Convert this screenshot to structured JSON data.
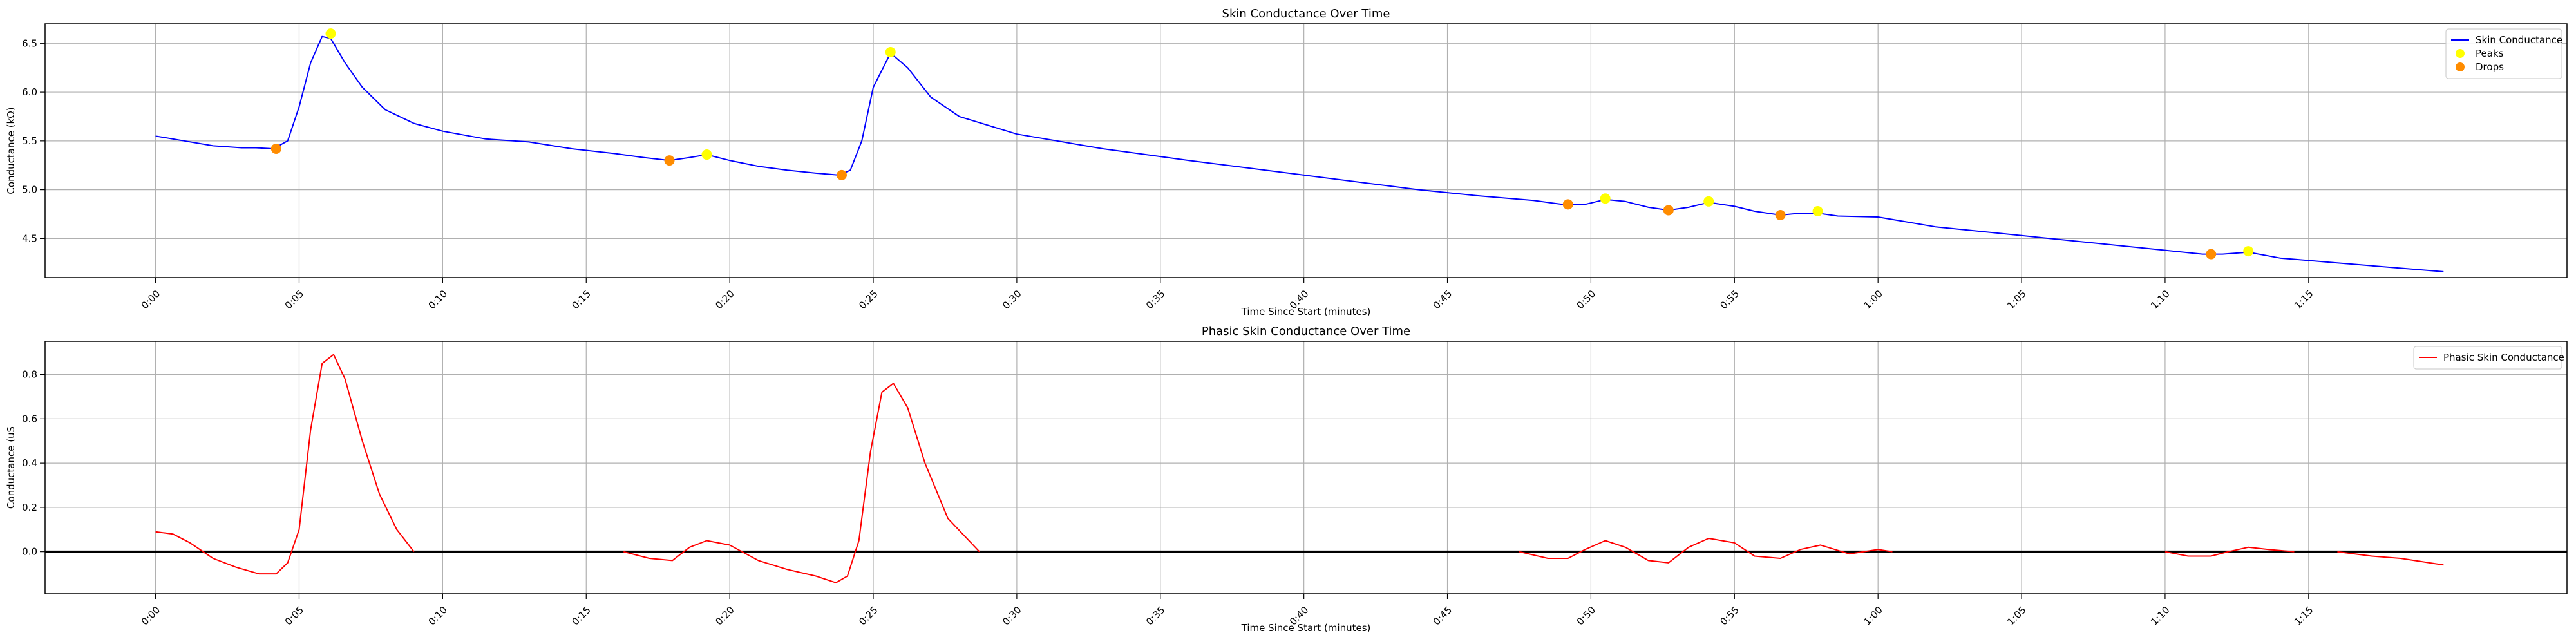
{
  "chart_data": [
    {
      "type": "line",
      "title": "Skin Conductance Over Time",
      "xlabel": "Time Since Start (minutes)",
      "ylabel": "Conductance (kΩ)",
      "xlim": [
        -0.0385,
        0.84
      ],
      "ylim": [
        4.1,
        6.7
      ],
      "xticks": [
        0.0,
        0.05,
        0.1,
        0.15,
        0.2,
        0.25,
        0.3,
        0.35,
        0.4,
        0.45,
        0.5,
        0.55,
        0.6,
        0.65,
        0.7,
        0.75
      ],
      "xtick_labels": [
        "0:00",
        "0:05",
        "0:10",
        "0:15",
        "0:20",
        "0:25",
        "0:30",
        "0:35",
        "0:40",
        "0:45",
        "0:50",
        "0:55",
        "1:00",
        "1:05",
        "1:10",
        "1:15"
      ],
      "yticks": [
        4.5,
        5.0,
        5.5,
        6.0,
        6.5
      ],
      "ytick_labels": [
        "4.5",
        "5.0",
        "5.5",
        "6.0",
        "6.5"
      ],
      "grid": true,
      "legend_position": "top-right",
      "series": [
        {
          "name": "Skin Conductance",
          "color": "#0000ff",
          "x": [
            0.0,
            0.01,
            0.02,
            0.03,
            0.035,
            0.041,
            0.046,
            0.05,
            0.054,
            0.058,
            0.061,
            0.066,
            0.072,
            0.08,
            0.09,
            0.1,
            0.115,
            0.13,
            0.145,
            0.16,
            0.17,
            0.179,
            0.186,
            0.192,
            0.2,
            0.21,
            0.22,
            0.23,
            0.238,
            0.242,
            0.246,
            0.25,
            0.256,
            0.262,
            0.27,
            0.28,
            0.3,
            0.33,
            0.36,
            0.4,
            0.44,
            0.46,
            0.48,
            0.49,
            0.498,
            0.505,
            0.512,
            0.52,
            0.527,
            0.534,
            0.541,
            0.55,
            0.557,
            0.566,
            0.573,
            0.579,
            0.586,
            0.6,
            0.62,
            0.65,
            0.68,
            0.7,
            0.713,
            0.72,
            0.729,
            0.74,
            0.76,
            0.797
          ],
          "y": [
            5.55,
            5.5,
            5.45,
            5.43,
            5.43,
            5.42,
            5.5,
            5.85,
            6.3,
            6.57,
            6.55,
            6.3,
            6.05,
            5.82,
            5.68,
            5.6,
            5.52,
            5.49,
            5.42,
            5.37,
            5.33,
            5.3,
            5.33,
            5.36,
            5.3,
            5.24,
            5.2,
            5.17,
            5.15,
            5.2,
            5.5,
            6.05,
            6.4,
            6.25,
            5.95,
            5.75,
            5.57,
            5.42,
            5.3,
            5.15,
            5.0,
            4.94,
            4.89,
            4.85,
            4.85,
            4.9,
            4.88,
            4.82,
            4.79,
            4.82,
            4.87,
            4.83,
            4.78,
            4.74,
            4.76,
            4.76,
            4.73,
            4.72,
            4.62,
            4.53,
            4.44,
            4.38,
            4.34,
            4.34,
            4.36,
            4.3,
            4.25,
            4.16
          ]
        },
        {
          "name": "Peaks",
          "kind": "scatter",
          "color": "#ffff00",
          "x": [
            0.061,
            0.192,
            0.256,
            0.505,
            0.541,
            0.579,
            0.729
          ],
          "y": [
            6.6,
            5.36,
            6.41,
            4.91,
            4.88,
            4.78,
            4.37
          ]
        },
        {
          "name": "Drops",
          "kind": "scatter",
          "color": "#ff8c00",
          "x": [
            0.042,
            0.179,
            0.239,
            0.492,
            0.527,
            0.566,
            0.716
          ],
          "y": [
            5.42,
            5.3,
            5.15,
            4.85,
            4.79,
            4.74,
            4.34
          ]
        }
      ]
    },
    {
      "type": "line",
      "title": "Phasic Skin Conductance Over Time",
      "xlabel": "Time Since Start (minutes)",
      "ylabel": "Conductance (uS",
      "xlim": [
        -0.0385,
        0.84
      ],
      "ylim": [
        -0.19,
        0.95
      ],
      "xticks": [
        0.0,
        0.05,
        0.1,
        0.15,
        0.2,
        0.25,
        0.3,
        0.35,
        0.4,
        0.45,
        0.5,
        0.55,
        0.6,
        0.65,
        0.7,
        0.75
      ],
      "xtick_labels": [
        "0:00",
        "0:05",
        "0:10",
        "0:15",
        "0:20",
        "0:25",
        "0:30",
        "0:35",
        "0:40",
        "0:45",
        "0:50",
        "0:55",
        "1:00",
        "1:05",
        "1:10",
        "1:15"
      ],
      "yticks": [
        0.0,
        0.2,
        0.4,
        0.6,
        0.8
      ],
      "ytick_labels": [
        "0.0",
        "0.2",
        "0.4",
        "0.6",
        "0.8"
      ],
      "grid": true,
      "legend_position": "top-right",
      "hline": 0.0,
      "series": [
        {
          "name": "Phasic Skin Conductance",
          "color": "#ff0000",
          "segments": [
            {
              "x": [
                0.0,
                0.006,
                0.012,
                0.02,
                0.028,
                0.036,
                0.042,
                0.046,
                0.05,
                0.054,
                0.058,
                0.062,
                0.066,
                0.072,
                0.078,
                0.084,
                0.09
              ],
              "y": [
                0.09,
                0.08,
                0.04,
                -0.03,
                -0.07,
                -0.1,
                -0.1,
                -0.05,
                0.1,
                0.55,
                0.85,
                0.89,
                0.78,
                0.5,
                0.26,
                0.1,
                0.0
              ]
            },
            {
              "x": [
                0.163,
                0.172,
                0.18,
                0.186,
                0.192,
                0.2,
                0.21,
                0.22,
                0.23,
                0.237,
                0.241,
                0.245,
                0.249,
                0.253,
                0.257,
                0.262,
                0.268,
                0.276,
                0.287
              ],
              "y": [
                0.0,
                -0.03,
                -0.04,
                0.02,
                0.05,
                0.03,
                -0.04,
                -0.08,
                -0.11,
                -0.14,
                -0.11,
                0.05,
                0.45,
                0.72,
                0.76,
                0.65,
                0.4,
                0.15,
                0.0
              ]
            },
            {
              "x": [
                0.475,
                0.485,
                0.492,
                0.498,
                0.505,
                0.512,
                0.52,
                0.527,
                0.534,
                0.541,
                0.55,
                0.557,
                0.566,
                0.573,
                0.58,
                0.59,
                0.6,
                0.605
              ],
              "y": [
                0.0,
                -0.03,
                -0.03,
                0.01,
                0.05,
                0.02,
                -0.04,
                -0.05,
                0.02,
                0.06,
                0.04,
                -0.02,
                -0.03,
                0.01,
                0.03,
                -0.01,
                0.01,
                0.0
              ]
            },
            {
              "x": [
                0.7,
                0.708,
                0.716,
                0.722,
                0.729,
                0.736,
                0.745
              ],
              "y": [
                0.0,
                -0.02,
                -0.02,
                0.0,
                0.02,
                0.01,
                0.0
              ]
            },
            {
              "x": [
                0.76,
                0.772,
                0.782,
                0.797
              ],
              "y": [
                0.0,
                -0.02,
                -0.03,
                -0.06
              ]
            }
          ]
        }
      ]
    }
  ]
}
